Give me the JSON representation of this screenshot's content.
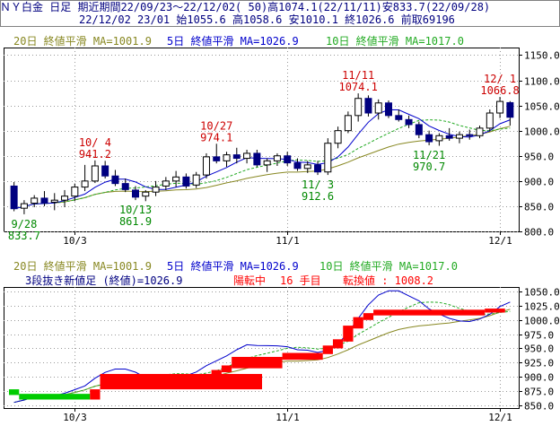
{
  "header": {
    "title": "ＮＹ白金 日足 期近",
    "period": "期間22/09/23～22/12/02( 50)",
    "high": "高1074.1(22/11/11)",
    "low": "安833.7(22/09/28)",
    "last_bar": "22/12/02 23/01",
    "open": "始1055.6",
    "bar_high": "高1058.6",
    "bar_low": "安1010.1",
    "close": "終1026.6",
    "volume": "前取69196"
  },
  "legend": {
    "ma20": "20日 終値平滑 MA=1001.9",
    "ma5": "5日 終値平滑 MA=1026.9",
    "ma10": "10日 終値平滑 MA=1017.0"
  },
  "sanpu": {
    "name": "3段抜き新値足 (終値)=1026.9",
    "state": "陽転中",
    "count": "16 手目",
    "reversal": "転換値 : 1008.2"
  },
  "colors": {
    "ma5": "#0000cc",
    "ma10": "#22aa22",
    "ma20": "#888822",
    "up_block": "#ff0000",
    "down_block": "#00cc00",
    "candle_down": "#000080",
    "annotation_high": "#cc0000",
    "annotation_low": "#008800"
  },
  "chart_data": [
    {
      "type": "candlestick",
      "ylim": [
        800,
        1165
      ],
      "y_ticks": [
        800,
        850,
        900,
        950,
        1000,
        1050,
        1100,
        1150
      ],
      "y_tick_labels": [
        "800.0",
        "850.0",
        "900.0",
        "950.0",
        "1000.0",
        "1050.0",
        "1100.0",
        "1150.0"
      ],
      "x_tick_labels": [
        {
          "label": "10/3",
          "index": 6
        },
        {
          "label": "11/1",
          "index": 27
        },
        {
          "label": "12/1",
          "index": 48
        }
      ],
      "candles": [
        {
          "o": 890,
          "h": 898,
          "l": 840,
          "c": 845
        },
        {
          "o": 846,
          "h": 862,
          "l": 834,
          "c": 855
        },
        {
          "o": 856,
          "h": 872,
          "l": 848,
          "c": 866
        },
        {
          "o": 866,
          "h": 880,
          "l": 850,
          "c": 856
        },
        {
          "o": 858,
          "h": 876,
          "l": 842,
          "c": 862
        },
        {
          "o": 862,
          "h": 882,
          "l": 848,
          "c": 870
        },
        {
          "o": 870,
          "h": 895,
          "l": 860,
          "c": 888
        },
        {
          "o": 888,
          "h": 932,
          "l": 880,
          "c": 900
        },
        {
          "o": 900,
          "h": 941,
          "l": 896,
          "c": 930
        },
        {
          "o": 930,
          "h": 940,
          "l": 905,
          "c": 910
        },
        {
          "o": 910,
          "h": 922,
          "l": 890,
          "c": 895
        },
        {
          "o": 895,
          "h": 905,
          "l": 878,
          "c": 883
        },
        {
          "o": 882,
          "h": 890,
          "l": 862,
          "c": 868
        },
        {
          "o": 870,
          "h": 882,
          "l": 860,
          "c": 878
        },
        {
          "o": 878,
          "h": 900,
          "l": 870,
          "c": 888
        },
        {
          "o": 890,
          "h": 908,
          "l": 882,
          "c": 900
        },
        {
          "o": 900,
          "h": 920,
          "l": 888,
          "c": 908
        },
        {
          "o": 908,
          "h": 915,
          "l": 885,
          "c": 890
        },
        {
          "o": 892,
          "h": 918,
          "l": 886,
          "c": 912
        },
        {
          "o": 912,
          "h": 955,
          "l": 905,
          "c": 948
        },
        {
          "o": 948,
          "h": 974,
          "l": 935,
          "c": 940
        },
        {
          "o": 940,
          "h": 958,
          "l": 928,
          "c": 952
        },
        {
          "o": 952,
          "h": 966,
          "l": 935,
          "c": 945
        },
        {
          "o": 945,
          "h": 962,
          "l": 935,
          "c": 955
        },
        {
          "o": 955,
          "h": 962,
          "l": 928,
          "c": 932
        },
        {
          "o": 932,
          "h": 945,
          "l": 918,
          "c": 940
        },
        {
          "o": 940,
          "h": 955,
          "l": 930,
          "c": 950
        },
        {
          "o": 950,
          "h": 958,
          "l": 930,
          "c": 936
        },
        {
          "o": 936,
          "h": 945,
          "l": 920,
          "c": 925
        },
        {
          "o": 925,
          "h": 940,
          "l": 916,
          "c": 932
        },
        {
          "o": 932,
          "h": 940,
          "l": 912,
          "c": 918
        },
        {
          "o": 918,
          "h": 985,
          "l": 912,
          "c": 975
        },
        {
          "o": 975,
          "h": 1008,
          "l": 965,
          "c": 1000
        },
        {
          "o": 1000,
          "h": 1038,
          "l": 995,
          "c": 1030
        },
        {
          "o": 1030,
          "h": 1074,
          "l": 1018,
          "c": 1064
        },
        {
          "o": 1064,
          "h": 1070,
          "l": 1028,
          "c": 1035
        },
        {
          "o": 1035,
          "h": 1062,
          "l": 1022,
          "c": 1055
        },
        {
          "o": 1055,
          "h": 1060,
          "l": 1025,
          "c": 1030
        },
        {
          "o": 1030,
          "h": 1042,
          "l": 1018,
          "c": 1022
        },
        {
          "o": 1022,
          "h": 1030,
          "l": 1005,
          "c": 1012
        },
        {
          "o": 1012,
          "h": 1018,
          "l": 985,
          "c": 992
        },
        {
          "o": 992,
          "h": 1000,
          "l": 971,
          "c": 978
        },
        {
          "o": 980,
          "h": 995,
          "l": 970,
          "c": 990
        },
        {
          "o": 990,
          "h": 1005,
          "l": 980,
          "c": 985
        },
        {
          "o": 985,
          "h": 998,
          "l": 975,
          "c": 992
        },
        {
          "o": 992,
          "h": 1002,
          "l": 982,
          "c": 990
        },
        {
          "o": 990,
          "h": 1010,
          "l": 985,
          "c": 1005
        },
        {
          "o": 1005,
          "h": 1042,
          "l": 998,
          "c": 1035
        },
        {
          "o": 1035,
          "h": 1067,
          "l": 1025,
          "c": 1058
        },
        {
          "o": 1055.6,
          "h": 1058.6,
          "l": 1010.1,
          "c": 1026.6
        }
      ],
      "annotations": [
        {
          "date": "9/28",
          "value": "833.7",
          "index": 1,
          "kind": "low"
        },
        {
          "date": "10/ 4",
          "value": "941.2",
          "index": 8,
          "kind": "high"
        },
        {
          "date": "10/13",
          "value": "861.9",
          "index": 12,
          "kind": "low"
        },
        {
          "date": "10/27",
          "value": "974.1",
          "index": 20,
          "kind": "high"
        },
        {
          "date": "11/ 3",
          "value": "912.6",
          "index": 30,
          "kind": "low"
        },
        {
          "date": "11/11",
          "value": "1074.1",
          "index": 34,
          "kind": "high"
        },
        {
          "date": "11/21",
          "value": "970.7",
          "index": 41,
          "kind": "low"
        },
        {
          "date": "12/ 1",
          "value": "1066.8",
          "index": 48,
          "kind": "high"
        }
      ]
    },
    {
      "type": "renko-three-line-break",
      "ylim": [
        845,
        1058
      ],
      "y_ticks": [
        850,
        875,
        900,
        925,
        950,
        975,
        1000,
        1025,
        1050
      ],
      "y_tick_labels": [
        "850.0",
        "875.0",
        "900.0",
        "925.0",
        "950.0",
        "975.0",
        "1000.0",
        "1025.0",
        "1050.0"
      ],
      "blocks": [
        {
          "start": 0,
          "end": 1,
          "lo": 868,
          "hi": 878,
          "dir": "down"
        },
        {
          "start": 1,
          "end": 8,
          "lo": 860,
          "hi": 870,
          "dir": "down"
        },
        {
          "start": 8,
          "end": 9,
          "lo": 860,
          "hi": 878,
          "dir": "up"
        },
        {
          "start": 9,
          "end": 25,
          "lo": 878,
          "hi": 905,
          "dir": "up"
        },
        {
          "start": 19,
          "end": 20,
          "lo": 892,
          "hi": 905,
          "dir": "up"
        },
        {
          "start": 20,
          "end": 21,
          "lo": 900,
          "hi": 912,
          "dir": "up"
        },
        {
          "start": 21,
          "end": 22,
          "lo": 908,
          "hi": 920,
          "dir": "up"
        },
        {
          "start": 22,
          "end": 27,
          "lo": 915,
          "hi": 935,
          "dir": "up"
        },
        {
          "start": 27,
          "end": 31,
          "lo": 930,
          "hi": 942,
          "dir": "up"
        },
        {
          "start": 31,
          "end": 32,
          "lo": 940,
          "hi": 955,
          "dir": "up"
        },
        {
          "start": 32,
          "end": 33,
          "lo": 950,
          "hi": 966,
          "dir": "up"
        },
        {
          "start": 33,
          "end": 34,
          "lo": 962,
          "hi": 990,
          "dir": "up"
        },
        {
          "start": 34,
          "end": 35,
          "lo": 985,
          "hi": 1005,
          "dir": "up"
        },
        {
          "start": 35,
          "end": 36,
          "lo": 1000,
          "hi": 1012,
          "dir": "up"
        },
        {
          "start": 36,
          "end": 47,
          "lo": 1008,
          "hi": 1018,
          "dir": "up"
        },
        {
          "start": 47,
          "end": 49,
          "lo": 1013,
          "hi": 1020,
          "dir": "up"
        }
      ]
    }
  ]
}
